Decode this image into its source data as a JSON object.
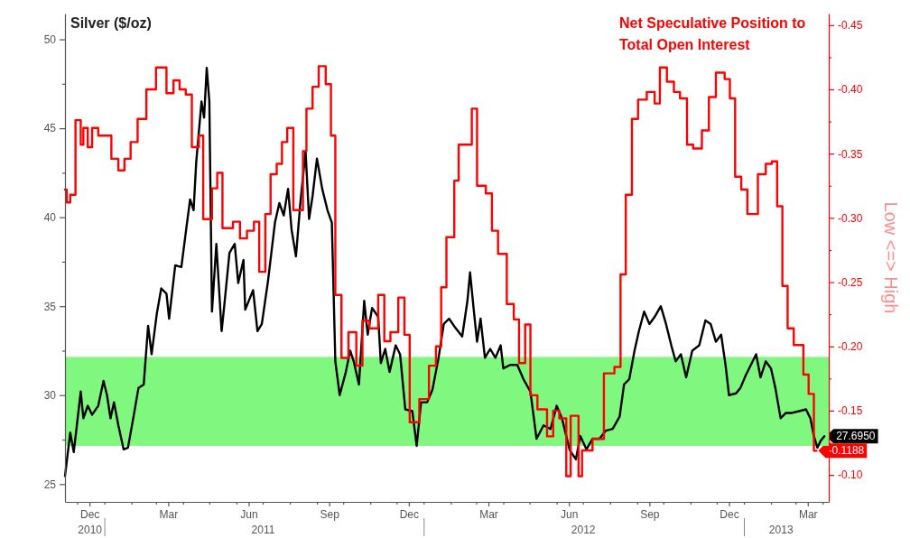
{
  "chart_data": {
    "type": "line",
    "ylabel": "Silver ($/oz)",
    "y2label": "Low <=> High",
    "xlim": [
      "2010-11-17",
      "2013-04-08"
    ],
    "xticks": [
      {
        "value": "2010-12-01",
        "label": null
      },
      {
        "value": "2010-12-15",
        "label": "Dec"
      },
      {
        "value": "2011-01-01",
        "label": null
      },
      {
        "value": "2011-02-01",
        "label": null
      },
      {
        "value": "2011-03-01",
        "label": null
      },
      {
        "value": "2011-03-15",
        "label": "Mar"
      },
      {
        "value": "2011-04-01",
        "label": null
      },
      {
        "value": "2011-05-01",
        "label": null
      },
      {
        "value": "2011-06-01",
        "label": null
      },
      {
        "value": "2011-06-15",
        "label": "Jun"
      },
      {
        "value": "2011-07-01",
        "label": null
      },
      {
        "value": "2011-08-01",
        "label": null
      },
      {
        "value": "2011-09-01",
        "label": null
      },
      {
        "value": "2011-09-15",
        "label": "Sep"
      },
      {
        "value": "2011-10-01",
        "label": null
      },
      {
        "value": "2011-11-01",
        "label": null
      },
      {
        "value": "2011-12-01",
        "label": null
      },
      {
        "value": "2011-12-15",
        "label": "Dec"
      },
      {
        "value": "2012-01-01",
        "label": null
      },
      {
        "value": "2012-02-01",
        "label": null
      },
      {
        "value": "2012-03-01",
        "label": null
      },
      {
        "value": "2012-03-15",
        "label": "Mar"
      },
      {
        "value": "2012-04-01",
        "label": null
      },
      {
        "value": "2012-05-01",
        "label": null
      },
      {
        "value": "2012-06-01",
        "label": null
      },
      {
        "value": "2012-06-15",
        "label": "Jun"
      },
      {
        "value": "2012-07-01",
        "label": null
      },
      {
        "value": "2012-08-01",
        "label": null
      },
      {
        "value": "2012-09-01",
        "label": null
      },
      {
        "value": "2012-09-15",
        "label": "Sep"
      },
      {
        "value": "2012-10-01",
        "label": null
      },
      {
        "value": "2012-11-01",
        "label": null
      },
      {
        "value": "2012-12-01",
        "label": null
      },
      {
        "value": "2012-12-15",
        "label": "Dec"
      },
      {
        "value": "2013-01-01",
        "label": null
      },
      {
        "value": "2013-02-01",
        "label": null
      },
      {
        "value": "2013-03-01",
        "label": null
      },
      {
        "value": "2013-03-15",
        "label": "Mar"
      },
      {
        "value": "2013-04-01",
        "label": null
      }
    ],
    "x2lim": [
      "2010-11-17",
      "2013-04-08"
    ],
    "x2ticks": [
      {
        "value": "2010-12-15",
        "label": "2010"
      },
      {
        "value": "2011-01-01",
        "label": null
      },
      {
        "value": "2011-07-01",
        "label": "2011"
      },
      {
        "value": "2012-01-01",
        "label": null
      },
      {
        "value": "2012-07-01",
        "label": "2012"
      },
      {
        "value": "2013-01-01",
        "label": null
      },
      {
        "value": "2013-02-12",
        "label": "2013"
      }
    ],
    "ylim": [
      24.0,
      51.45
    ],
    "yticks": [
      25,
      {
        "value": 27.5,
        "label": null
      },
      30,
      {
        "value": 32.5,
        "label": null
      },
      35,
      {
        "value": 37.5,
        "label": null
      },
      40,
      {
        "value": 42.5,
        "label": null
      },
      45,
      {
        "value": 47.5,
        "label": null
      },
      50
    ],
    "y2lim": [
      -0.079,
      -0.459
    ],
    "y2ticks": [
      {
        "value": -0.1,
        "label": "-0.10"
      },
      {
        "value": -0.125,
        "label": null
      },
      {
        "value": -0.15,
        "label": "-0.15"
      },
      {
        "value": -0.175,
        "label": null
      },
      {
        "value": -0.2,
        "label": "-0.20"
      },
      {
        "value": -0.225,
        "label": null
      },
      {
        "value": -0.25,
        "label": "-0.25"
      },
      {
        "value": -0.275,
        "label": null
      },
      {
        "value": -0.3,
        "label": "-0.30"
      },
      {
        "value": -0.325,
        "label": null
      },
      {
        "value": -0.35,
        "label": "-0.35"
      },
      {
        "value": -0.375,
        "label": null
      },
      {
        "value": -0.4,
        "label": "-0.40"
      },
      {
        "value": -0.425,
        "label": null
      },
      {
        "value": -0.45,
        "label": "-0.45"
      }
    ],
    "bands": [
      {
        "axis": "y",
        "from": 27.15,
        "to": 32.15,
        "color": "#80f880"
      }
    ],
    "series": [
      {
        "type": "line",
        "color": "#000000",
        "x": [
          "2010-11-17",
          "2010-11-23",
          "2010-11-27",
          "2010-12-01",
          "2010-12-05",
          "2010-12-08",
          "2010-12-13",
          "2010-12-18",
          "2010-12-25",
          "2010-12-31",
          "2011-01-04",
          "2011-01-08",
          "2011-01-12",
          "2011-01-17",
          "2011-01-23",
          "2011-01-28",
          "2011-02-03",
          "2011-02-09",
          "2011-02-15",
          "2011-02-20",
          "2011-02-24",
          "2011-03-02",
          "2011-03-07",
          "2011-03-13",
          "2011-03-16",
          "2011-03-23",
          "2011-03-30",
          "2011-04-05",
          "2011-04-09",
          "2011-04-13",
          "2011-04-16",
          "2011-04-22",
          "2011-04-25",
          "2011-04-28",
          "2011-05-01",
          "2011-05-04",
          "2011-05-09",
          "2011-05-15",
          "2011-05-18",
          "2011-05-24",
          "2011-05-30",
          "2011-06-03",
          "2011-06-09",
          "2011-06-11",
          "2011-06-20",
          "2011-06-25",
          "2011-06-30",
          "2011-07-07",
          "2011-07-15",
          "2011-07-20",
          "2011-07-25",
          "2011-07-30",
          "2011-08-03",
          "2011-08-08",
          "2011-08-13",
          "2011-08-19",
          "2011-08-23",
          "2011-08-27",
          "2011-09-01",
          "2011-09-07",
          "2011-09-13",
          "2011-09-18",
          "2011-09-22",
          "2011-09-27",
          "2011-10-04",
          "2011-10-09",
          "2011-10-13",
          "2011-10-19",
          "2011-10-25",
          "2011-10-29",
          "2011-11-03",
          "2011-11-10",
          "2011-11-13",
          "2011-11-18",
          "2011-11-23",
          "2011-11-30",
          "2011-12-05",
          "2011-12-11",
          "2011-12-19",
          "2011-12-24",
          "2011-12-29",
          "2012-01-05",
          "2012-01-11",
          "2012-01-18",
          "2012-01-24",
          "2012-01-30",
          "2012-02-06",
          "2012-02-14",
          "2012-02-20",
          "2012-02-23",
          "2012-02-27",
          "2012-03-02",
          "2012-03-06",
          "2012-03-11",
          "2012-03-17",
          "2012-03-23",
          "2012-03-29",
          "2012-04-01",
          "2012-04-09",
          "2012-04-17",
          "2012-04-24",
          "2012-05-02",
          "2012-05-09",
          "2012-05-17",
          "2012-05-25",
          "2012-06-01",
          "2012-06-07",
          "2012-06-16",
          "2012-06-23",
          "2012-06-28",
          "2012-07-05",
          "2012-07-12",
          "2012-07-20",
          "2012-07-27",
          "2012-08-04",
          "2012-08-12",
          "2012-08-17",
          "2012-08-23",
          "2012-08-29",
          "2012-09-03",
          "2012-09-09",
          "2012-09-15",
          "2012-09-21",
          "2012-09-28",
          "2012-10-04",
          "2012-10-10",
          "2012-10-15",
          "2012-10-21",
          "2012-10-27",
          "2012-11-03",
          "2012-11-11",
          "2012-11-18",
          "2012-11-24",
          "2012-11-30",
          "2012-12-06",
          "2012-12-11",
          "2012-12-15",
          "2012-12-23",
          "2012-12-28",
          "2013-01-03",
          "2013-01-09",
          "2013-01-15",
          "2013-01-20",
          "2013-01-26",
          "2013-02-01",
          "2013-02-06",
          "2013-02-12",
          "2013-02-18",
          "2013-02-25",
          "2013-03-05",
          "2013-03-13",
          "2013-03-18",
          "2013-03-22",
          "2013-03-26",
          "2013-03-30",
          "2013-04-03"
        ],
        "values": [
          25.45,
          27.9,
          26.8,
          28.5,
          30.2,
          28.7,
          29.4,
          28.9,
          29.4,
          30.8,
          30.0,
          28.7,
          29.6,
          28.3,
          26.95,
          27.05,
          28.7,
          30.4,
          30.6,
          33.9,
          32.3,
          34.6,
          36.0,
          35.7,
          34.3,
          37.3,
          37.2,
          39.5,
          41.0,
          40.4,
          43.1,
          46.5,
          45.6,
          48.4,
          46.5,
          34.7,
          38.5,
          33.6,
          35.0,
          38.0,
          38.5,
          36.3,
          37.6,
          34.8,
          35.9,
          33.6,
          34.0,
          36.4,
          39.7,
          40.8,
          40.1,
          41.6,
          39.3,
          37.8,
          40.8,
          43.7,
          39.9,
          41.2,
          43.3,
          41.6,
          40.4,
          39.7,
          31.9,
          30.0,
          31.3,
          32.5,
          31.9,
          30.6,
          35.3,
          33.4,
          34.9,
          34.4,
          31.8,
          32.6,
          31.3,
          32.8,
          32.3,
          29.2,
          29.1,
          27.15,
          29.6,
          29.6,
          30.3,
          32.1,
          34.0,
          34.3,
          33.8,
          33.3,
          35.3,
          36.9,
          34.9,
          33.0,
          34.3,
          32.1,
          32.6,
          32.1,
          32.8,
          31.5,
          31.7,
          31.7,
          30.9,
          30.2,
          27.55,
          28.3,
          28.1,
          29.4,
          28.7,
          26.9,
          26.4,
          27.7,
          26.95,
          27.55,
          27.55,
          28.0,
          28.1,
          28.8,
          30.6,
          30.9,
          32.5,
          33.6,
          34.7,
          34.0,
          34.4,
          35.0,
          34.0,
          32.8,
          31.9,
          32.3,
          31.0,
          32.5,
          32.8,
          34.2,
          34.0,
          33.0,
          33.4,
          31.7,
          30.0,
          30.1,
          30.4,
          31.1,
          31.7,
          32.3,
          31.0,
          31.9,
          31.5,
          30.4,
          28.7,
          29.0,
          29.0,
          29.1,
          29.2,
          28.7,
          27.7,
          27.05,
          27.45,
          27.695
        ],
        "value_labels": [
          null,
          null,
          null,
          null,
          null,
          null,
          null,
          null,
          null,
          null,
          null,
          null,
          null,
          null,
          null,
          null,
          null,
          null,
          null,
          null,
          null,
          null,
          null,
          null,
          null,
          null,
          null,
          null,
          null,
          null,
          null,
          null,
          null,
          null,
          null,
          null,
          null,
          null,
          null,
          null,
          null,
          null,
          null,
          null,
          null,
          null,
          null,
          null,
          null,
          null,
          null,
          null,
          null,
          null,
          null,
          null,
          null,
          null,
          null,
          null,
          null,
          null,
          null,
          null,
          null,
          null,
          null,
          null,
          null,
          null,
          null,
          null,
          null,
          null,
          null,
          null,
          null,
          null,
          null,
          null,
          null,
          null,
          null,
          null,
          null,
          null,
          null,
          null,
          null,
          null,
          null,
          null,
          null,
          null,
          null,
          null,
          null,
          null,
          null,
          null,
          null,
          null,
          null,
          null,
          null,
          null,
          null,
          null,
          null,
          null,
          null,
          null,
          null,
          null,
          null,
          null,
          null,
          null,
          null,
          null,
          null,
          null,
          null,
          null,
          null,
          null,
          null,
          null,
          null,
          null,
          null,
          null,
          null,
          null,
          null,
          null,
          null,
          null,
          null,
          null,
          null,
          null,
          null,
          null,
          null,
          null,
          null,
          null,
          null,
          null,
          null,
          null,
          null,
          null,
          null,
          "27.6950"
        ]
      },
      {
        "type": "step",
        "axis": "y2",
        "name": "Net Speculative Position to Total Open Interest",
        "color": "#ff0000",
        "x": [
          "2010-11-17",
          "2010-11-19",
          "2010-11-23",
          "2010-11-29",
          "2010-12-05",
          "2010-12-08",
          "2010-12-13",
          "2010-12-18",
          "2010-12-25",
          "2011-01-09",
          "2011-01-17",
          "2011-01-24",
          "2011-01-31",
          "2011-02-08",
          "2011-02-18",
          "2011-03-01",
          "2011-03-13",
          "2011-03-21",
          "2011-03-28",
          "2011-04-04",
          "2011-04-11",
          "2011-04-19",
          "2011-04-24",
          "2011-05-04",
          "2011-05-10",
          "2011-05-16",
          "2011-05-28",
          "2011-06-05",
          "2011-06-13",
          "2011-06-21",
          "2011-06-27",
          "2011-07-04",
          "2011-07-10",
          "2011-07-17",
          "2011-07-23",
          "2011-07-29",
          "2011-08-05",
          "2011-08-16",
          "2011-08-20",
          "2011-08-27",
          "2011-09-03",
          "2011-09-11",
          "2011-09-17",
          "2011-09-22",
          "2011-09-29",
          "2011-10-07",
          "2011-10-16",
          "2011-10-23",
          "2011-10-31",
          "2011-11-10",
          "2011-11-17",
          "2011-11-24",
          "2011-12-03",
          "2011-12-10",
          "2011-12-16",
          "2011-12-27",
          "2012-01-07",
          "2012-01-15",
          "2012-01-21",
          "2012-01-27",
          "2012-02-05",
          "2012-02-10",
          "2012-02-25",
          "2012-03-02",
          "2012-03-12",
          "2012-03-19",
          "2012-03-26",
          "2012-04-05",
          "2012-04-13",
          "2012-04-19",
          "2012-04-26",
          "2012-05-02",
          "2012-05-10",
          "2012-05-21",
          "2012-05-28",
          "2012-06-04",
          "2012-06-12",
          "2012-06-17",
          "2012-06-26",
          "2012-06-30",
          "2012-07-12",
          "2012-07-25",
          "2012-08-06",
          "2012-08-13",
          "2012-08-19",
          "2012-08-26",
          "2012-09-02",
          "2012-09-12",
          "2012-09-21",
          "2012-09-27",
          "2012-10-05",
          "2012-10-13",
          "2012-10-20",
          "2012-10-28",
          "2012-11-04",
          "2012-11-14",
          "2012-11-22",
          "2012-11-30",
          "2012-12-10",
          "2012-12-16",
          "2012-12-22",
          "2012-12-29",
          "2013-01-05",
          "2013-01-17",
          "2013-01-26",
          "2013-02-02",
          "2013-02-08",
          "2013-02-14",
          "2013-02-20",
          "2013-02-27",
          "2013-03-10",
          "2013-03-16",
          "2013-03-22",
          "2013-03-25"
        ],
        "values": [
          -0.322,
          -0.312,
          -0.318,
          -0.376,
          -0.357,
          -0.37,
          -0.355,
          -0.37,
          -0.364,
          -0.346,
          -0.337,
          -0.346,
          -0.359,
          -0.377,
          -0.4,
          -0.417,
          -0.397,
          -0.407,
          -0.4,
          -0.396,
          -0.355,
          -0.364,
          -0.299,
          -0.323,
          -0.335,
          -0.292,
          -0.297,
          -0.284,
          -0.29,
          -0.297,
          -0.258,
          -0.303,
          -0.334,
          -0.342,
          -0.359,
          -0.37,
          -0.306,
          -0.352,
          -0.385,
          -0.402,
          -0.418,
          -0.404,
          -0.364,
          -0.24,
          -0.191,
          -0.211,
          -0.185,
          -0.22,
          -0.214,
          -0.24,
          -0.204,
          -0.211,
          -0.238,
          -0.209,
          -0.141,
          -0.159,
          -0.185,
          -0.2,
          -0.246,
          -0.285,
          -0.329,
          -0.357,
          -0.385,
          -0.325,
          -0.319,
          -0.29,
          -0.272,
          -0.233,
          -0.221,
          -0.187,
          -0.217,
          -0.162,
          -0.151,
          -0.13,
          -0.15,
          -0.144,
          -0.099,
          -0.146,
          -0.099,
          -0.119,
          -0.128,
          -0.179,
          -0.184,
          -0.256,
          -0.318,
          -0.377,
          -0.392,
          -0.398,
          -0.389,
          -0.417,
          -0.406,
          -0.398,
          -0.393,
          -0.357,
          -0.354,
          -0.368,
          -0.394,
          -0.413,
          -0.408,
          -0.393,
          -0.332,
          -0.322,
          -0.303,
          -0.334,
          -0.342,
          -0.344,
          -0.309,
          -0.247,
          -0.214,
          -0.201,
          -0.178,
          -0.163,
          -0.1188,
          -0.1188
        ],
        "value_labels": [
          null,
          null,
          null,
          null,
          null,
          null,
          null,
          null,
          null,
          null,
          null,
          null,
          null,
          null,
          null,
          null,
          null,
          null,
          null,
          null,
          null,
          null,
          null,
          null,
          null,
          null,
          null,
          null,
          null,
          null,
          null,
          null,
          null,
          null,
          null,
          null,
          null,
          null,
          null,
          null,
          null,
          null,
          null,
          null,
          null,
          null,
          null,
          null,
          null,
          null,
          null,
          null,
          null,
          null,
          null,
          null,
          null,
          null,
          null,
          null,
          null,
          null,
          null,
          null,
          null,
          null,
          null,
          null,
          null,
          null,
          null,
          null,
          null,
          null,
          null,
          null,
          null,
          null,
          null,
          null,
          null,
          null,
          null,
          null,
          null,
          null,
          null,
          null,
          null,
          null,
          null,
          null,
          null,
          null,
          null,
          null,
          null,
          null,
          null,
          null,
          null,
          null,
          null,
          null,
          null,
          null,
          null,
          null,
          null,
          null,
          null,
          null,
          null,
          "-0.1188"
        ]
      }
    ]
  }
}
